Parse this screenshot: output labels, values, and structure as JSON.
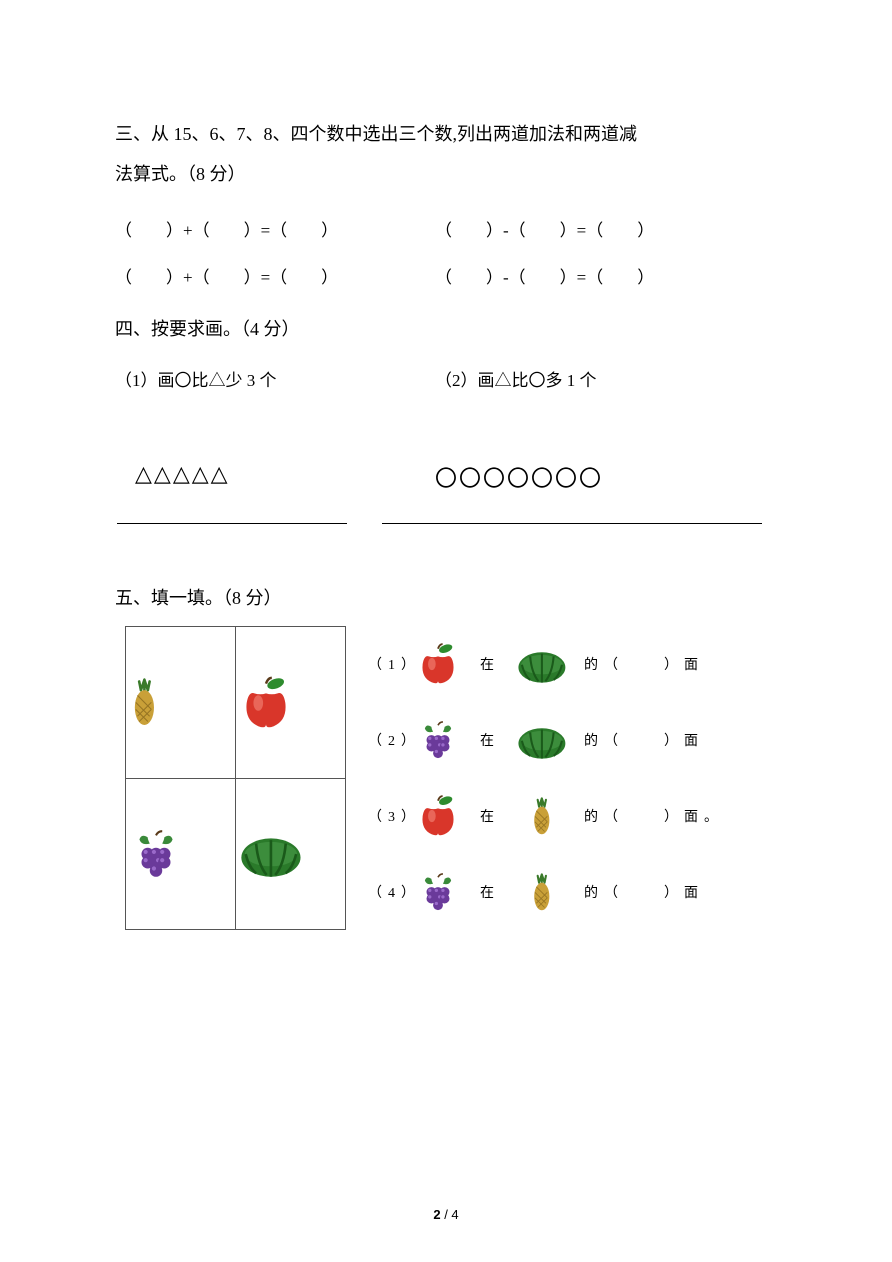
{
  "section3": {
    "title_line1": "三、从 15、6、7、8、四个数中选出三个数,列出两道加法和两道减",
    "title_line2": "法算式。（8 分）",
    "eq_add": "（　　）+（　　）=（　　）",
    "eq_sub": "（　　）-（　　）=（　　）"
  },
  "section4": {
    "title": "四、按要求画。（4 分）",
    "sub1": "（1）画〇比△少 3 个",
    "sub2": "（2）画△比〇多 1 个",
    "triangles": "△△△△△",
    "circles": "〇〇〇〇〇〇〇"
  },
  "section5": {
    "title": "五、填一填。（8 分）",
    "grid": {
      "r1c1": "pineapple",
      "r1c2": "apple",
      "r2c1": "grape",
      "r2c2": "watermelon"
    },
    "lines": [
      {
        "idx": "（1）",
        "fruit1": "apple",
        "txt1": "在",
        "fruit2": "watermelon",
        "tail": "的（　　）面"
      },
      {
        "idx": "（2）",
        "fruit1": "grape",
        "txt1": "在",
        "fruit2": "watermelon",
        "tail": "的（　　）面"
      },
      {
        "idx": "（3）",
        "fruit1": "apple",
        "txt1": "在",
        "fruit2": "pineapple",
        "tail": "的（　　）面。"
      },
      {
        "idx": "（4）",
        "fruit1": "grape",
        "txt1": "在",
        "fruit2": "pineapple",
        "tail": "的（　　）面"
      }
    ]
  },
  "footer": {
    "current": "2",
    "sep": " / ",
    "total": "4"
  },
  "fruit_svg": {
    "apple": {
      "body": "#d9362a",
      "highlight": "#f07a6e",
      "leaf": "#2e8b2e",
      "stem": "#5a3a1a"
    },
    "pineapple": {
      "body": "#c9a038",
      "pattern": "#8a6a1e",
      "leaves": "#3a7a2a"
    },
    "grape": {
      "berry": "#6a3a9a",
      "highlight": "#9a6aca",
      "leaf": "#3a8a3a",
      "stem": "#5a3a1a"
    },
    "watermelon": {
      "body": "#2a7a2a",
      "stripe": "#1a5a1a",
      "top": "#4a9a4a"
    }
  }
}
